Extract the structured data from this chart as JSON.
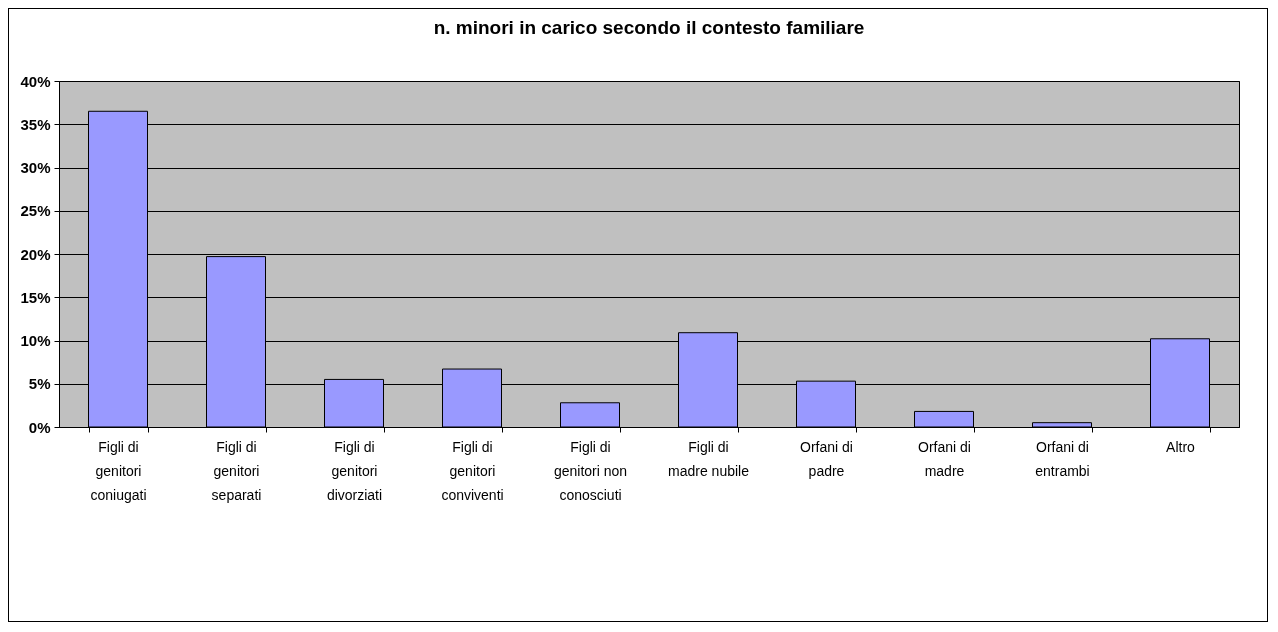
{
  "chart_data": {
    "type": "bar",
    "title": "n. minori in carico secondo il contesto familiare",
    "categories": [
      "Figli di genitori coniugati",
      "Figli di genitori separati",
      "Figli di genitori divorziati",
      "Figli di genitori conviventi",
      "Figli di genitori non conosciuti",
      "Figli di madre nubile",
      "Orfani di padre",
      "Orfani di madre",
      "Orfani di entrambi",
      "Altro"
    ],
    "values": [
      36.5,
      19.7,
      5.5,
      6.7,
      2.8,
      10.9,
      5.3,
      1.8,
      0.5,
      10.2
    ],
    "color": "#9999ff",
    "ylim": [
      0,
      40
    ],
    "yticks": [
      {
        "value": 0,
        "label": "0%"
      },
      {
        "value": 5,
        "label": "5%"
      },
      {
        "value": 10,
        "label": "10%"
      },
      {
        "value": 15,
        "label": "15%"
      },
      {
        "value": 20,
        "label": "20%"
      },
      {
        "value": 25,
        "label": "25%"
      },
      {
        "value": 30,
        "label": "30%"
      },
      {
        "value": 35,
        "label": "35%"
      },
      {
        "value": 40,
        "label": "40%"
      }
    ],
    "grid": "y"
  }
}
